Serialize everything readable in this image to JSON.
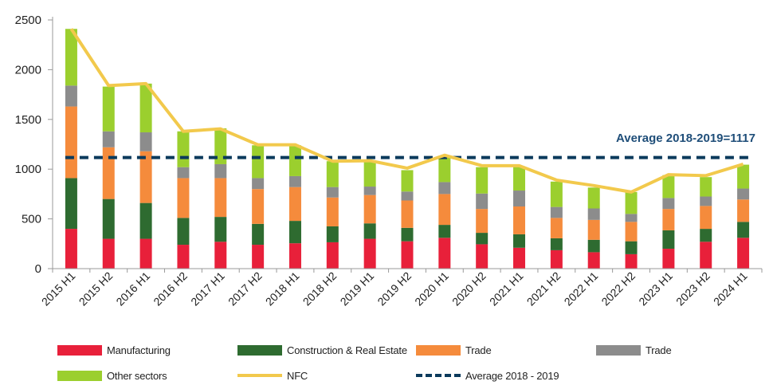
{
  "chart_data": {
    "type": "bar",
    "stacked": true,
    "categories": [
      "2015 H1",
      "2015 H2",
      "2016 H1",
      "2016 H2",
      "2017 H1",
      "2017 H2",
      "2018 H1",
      "2018 H2",
      "2019 H1",
      "2019 H2",
      "2020 H1",
      "2020 H2",
      "2021 H1",
      "2021 H2",
      "2022 H1",
      "2022 H2",
      "2023 H1",
      "2023 H2",
      "2024 H1"
    ],
    "ylim": [
      0,
      2500
    ],
    "yticks": [
      0,
      500,
      1000,
      1500,
      2000,
      2500
    ],
    "series": [
      {
        "name": "Manufacturing",
        "color": "#e8203a",
        "values": [
          400,
          300,
          300,
          240,
          270,
          240,
          255,
          265,
          300,
          275,
          310,
          245,
          210,
          185,
          165,
          145,
          200,
          270,
          310
        ]
      },
      {
        "name": "Construction & Real Estate",
        "color": "#2e6b30",
        "values": [
          510,
          400,
          360,
          270,
          250,
          210,
          225,
          160,
          155,
          135,
          130,
          115,
          135,
          120,
          125,
          130,
          185,
          130,
          160
        ]
      },
      {
        "name": "Trade",
        "color": "#f58b3c",
        "values": [
          720,
          520,
          520,
          400,
          390,
          350,
          340,
          290,
          285,
          275,
          310,
          240,
          280,
          205,
          200,
          195,
          215,
          230,
          225
        ]
      },
      {
        "name": "Trade",
        "color": "#8c8c8c",
        "values": [
          210,
          160,
          190,
          110,
          140,
          110,
          110,
          105,
          85,
          90,
          120,
          155,
          160,
          110,
          115,
          80,
          110,
          95,
          110
        ]
      },
      {
        "name": "Other sectors",
        "color": "#9bcf2e",
        "values": [
          570,
          450,
          490,
          360,
          360,
          330,
          310,
          260,
          245,
          215,
          260,
          265,
          245,
          255,
          210,
          220,
          230,
          195,
          240
        ]
      },
      {
        "name": "NFC",
        "type": "line",
        "color": "#f2c94c",
        "values": [
          2410,
          1840,
          1860,
          1380,
          1405,
          1245,
          1245,
          1080,
          1085,
          1010,
          1140,
          1035,
          1035,
          890,
          835,
          770,
          945,
          935,
          1050
        ]
      },
      {
        "name": "Average 2018 - 2019",
        "type": "line",
        "style": "dashed",
        "color": "#0b3a5c",
        "value": 1117
      }
    ],
    "annotation": "Average 2018-2019=1117",
    "legend_position": "bottom",
    "grid": false
  },
  "legend": [
    {
      "label": "Manufacturing",
      "kind": "swatch",
      "color": "#e8203a"
    },
    {
      "label": "Construction & Real Estate",
      "kind": "swatch",
      "color": "#2e6b30"
    },
    {
      "label": "Trade",
      "kind": "swatch",
      "color": "#f58b3c"
    },
    {
      "label": "Trade",
      "kind": "swatch",
      "color": "#8c8c8c"
    },
    {
      "label": "Other sectors",
      "kind": "swatch",
      "color": "#9bcf2e"
    },
    {
      "label": "NFC",
      "kind": "line",
      "color": "#f2c94c"
    },
    {
      "label": "Average 2018 - 2019",
      "kind": "dash",
      "color": "#0b3a5c"
    }
  ]
}
